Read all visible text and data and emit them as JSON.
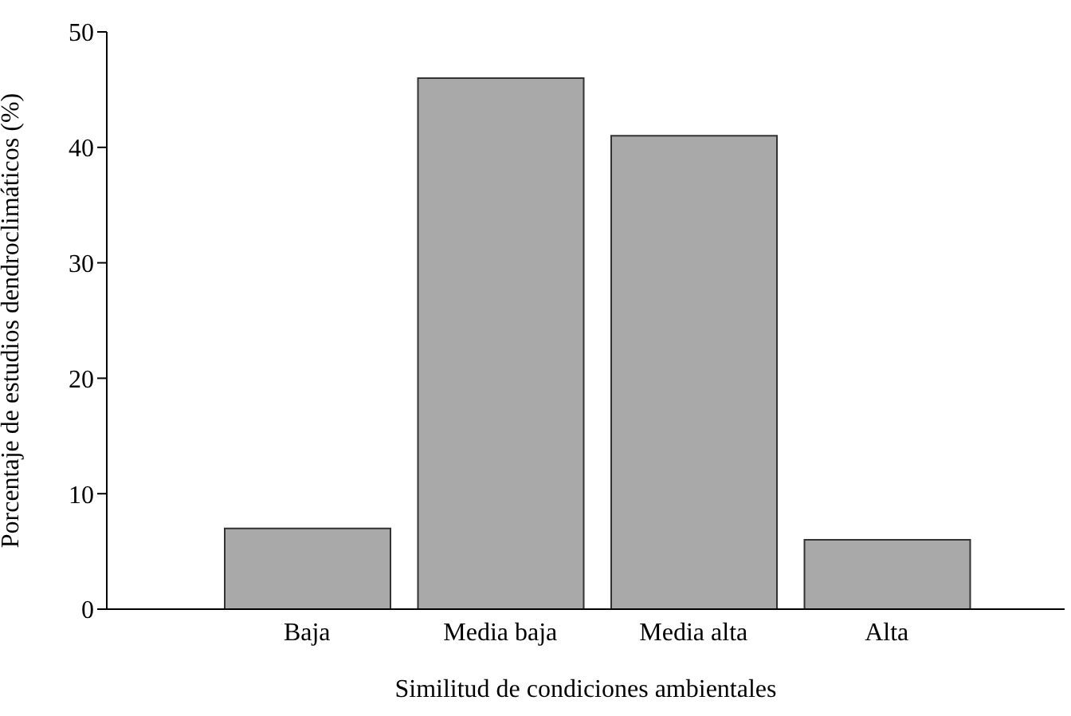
{
  "chart_data": {
    "type": "bar",
    "xlabel": "Similitud de condiciones ambientales",
    "ylabel": "Porcentaje de estudios dendroclimáticos (%)",
    "categories": [
      "Baja",
      "Media baja",
      "Media alta",
      "Alta"
    ],
    "values": [
      7,
      46,
      41,
      6
    ],
    "color": "#a9a9a9",
    "ylim": [
      0,
      50
    ],
    "yticks": [
      0,
      10,
      20,
      30,
      40,
      50
    ],
    "grid": false
  }
}
